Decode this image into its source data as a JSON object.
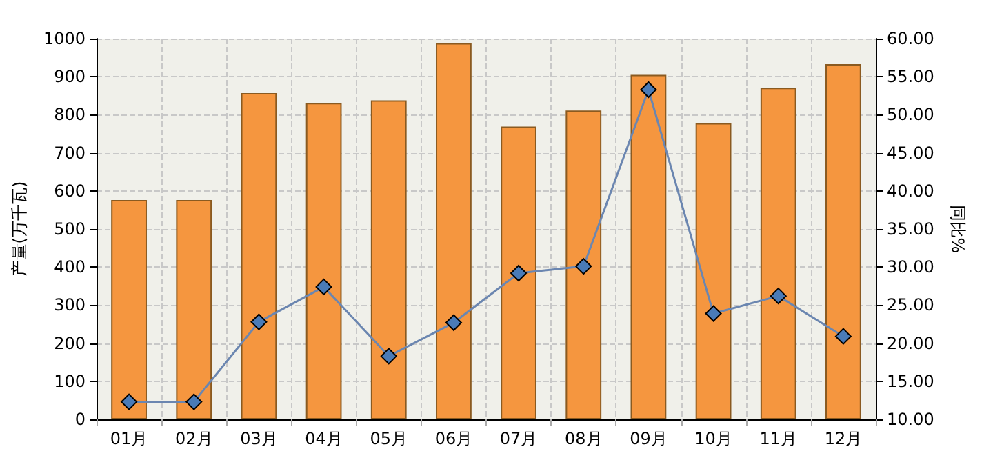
{
  "chart_data": {
    "type": "bar",
    "ylabel": "产量(万千瓦)",
    "y2label": "同比%",
    "categories": [
      "01月",
      "02月",
      "03月",
      "04月",
      "05月",
      "06月",
      "07月",
      "08月",
      "09月",
      "10月",
      "11月",
      "12月"
    ],
    "series": [
      {
        "color": "#f5963f",
        "values": [
          576,
          576,
          857,
          831,
          838,
          988,
          769,
          811,
          905,
          778,
          871,
          933
        ]
      },
      {
        "type": "line",
        "axis": "y2",
        "color": "#6b86b0",
        "marker": "diamond",
        "values": [
          12.3,
          12.3,
          22.8,
          27.4,
          18.3,
          22.7,
          29.2,
          30.1,
          53.3,
          23.9,
          26.2,
          20.9
        ]
      }
    ],
    "ylim": [
      0,
      1000
    ],
    "yticks": [
      0,
      100,
      200,
      300,
      400,
      500,
      600,
      700,
      800,
      900,
      1000
    ],
    "y2lim": [
      10,
      60
    ],
    "y2ticks": [
      {
        "value": 10,
        "label": "10.00"
      },
      {
        "value": 15,
        "label": "15.00"
      },
      {
        "value": 20,
        "label": "20.00"
      },
      {
        "value": 25,
        "label": "25.00"
      },
      {
        "value": 30,
        "label": "30.00"
      },
      {
        "value": 35,
        "label": "35.00"
      },
      {
        "value": 40,
        "label": "40.00"
      },
      {
        "value": 45,
        "label": "45.00"
      },
      {
        "value": 50,
        "label": "50.00"
      },
      {
        "value": 55,
        "label": "55.00"
      },
      {
        "value": 60,
        "label": "60.00"
      }
    ],
    "grid": true
  }
}
